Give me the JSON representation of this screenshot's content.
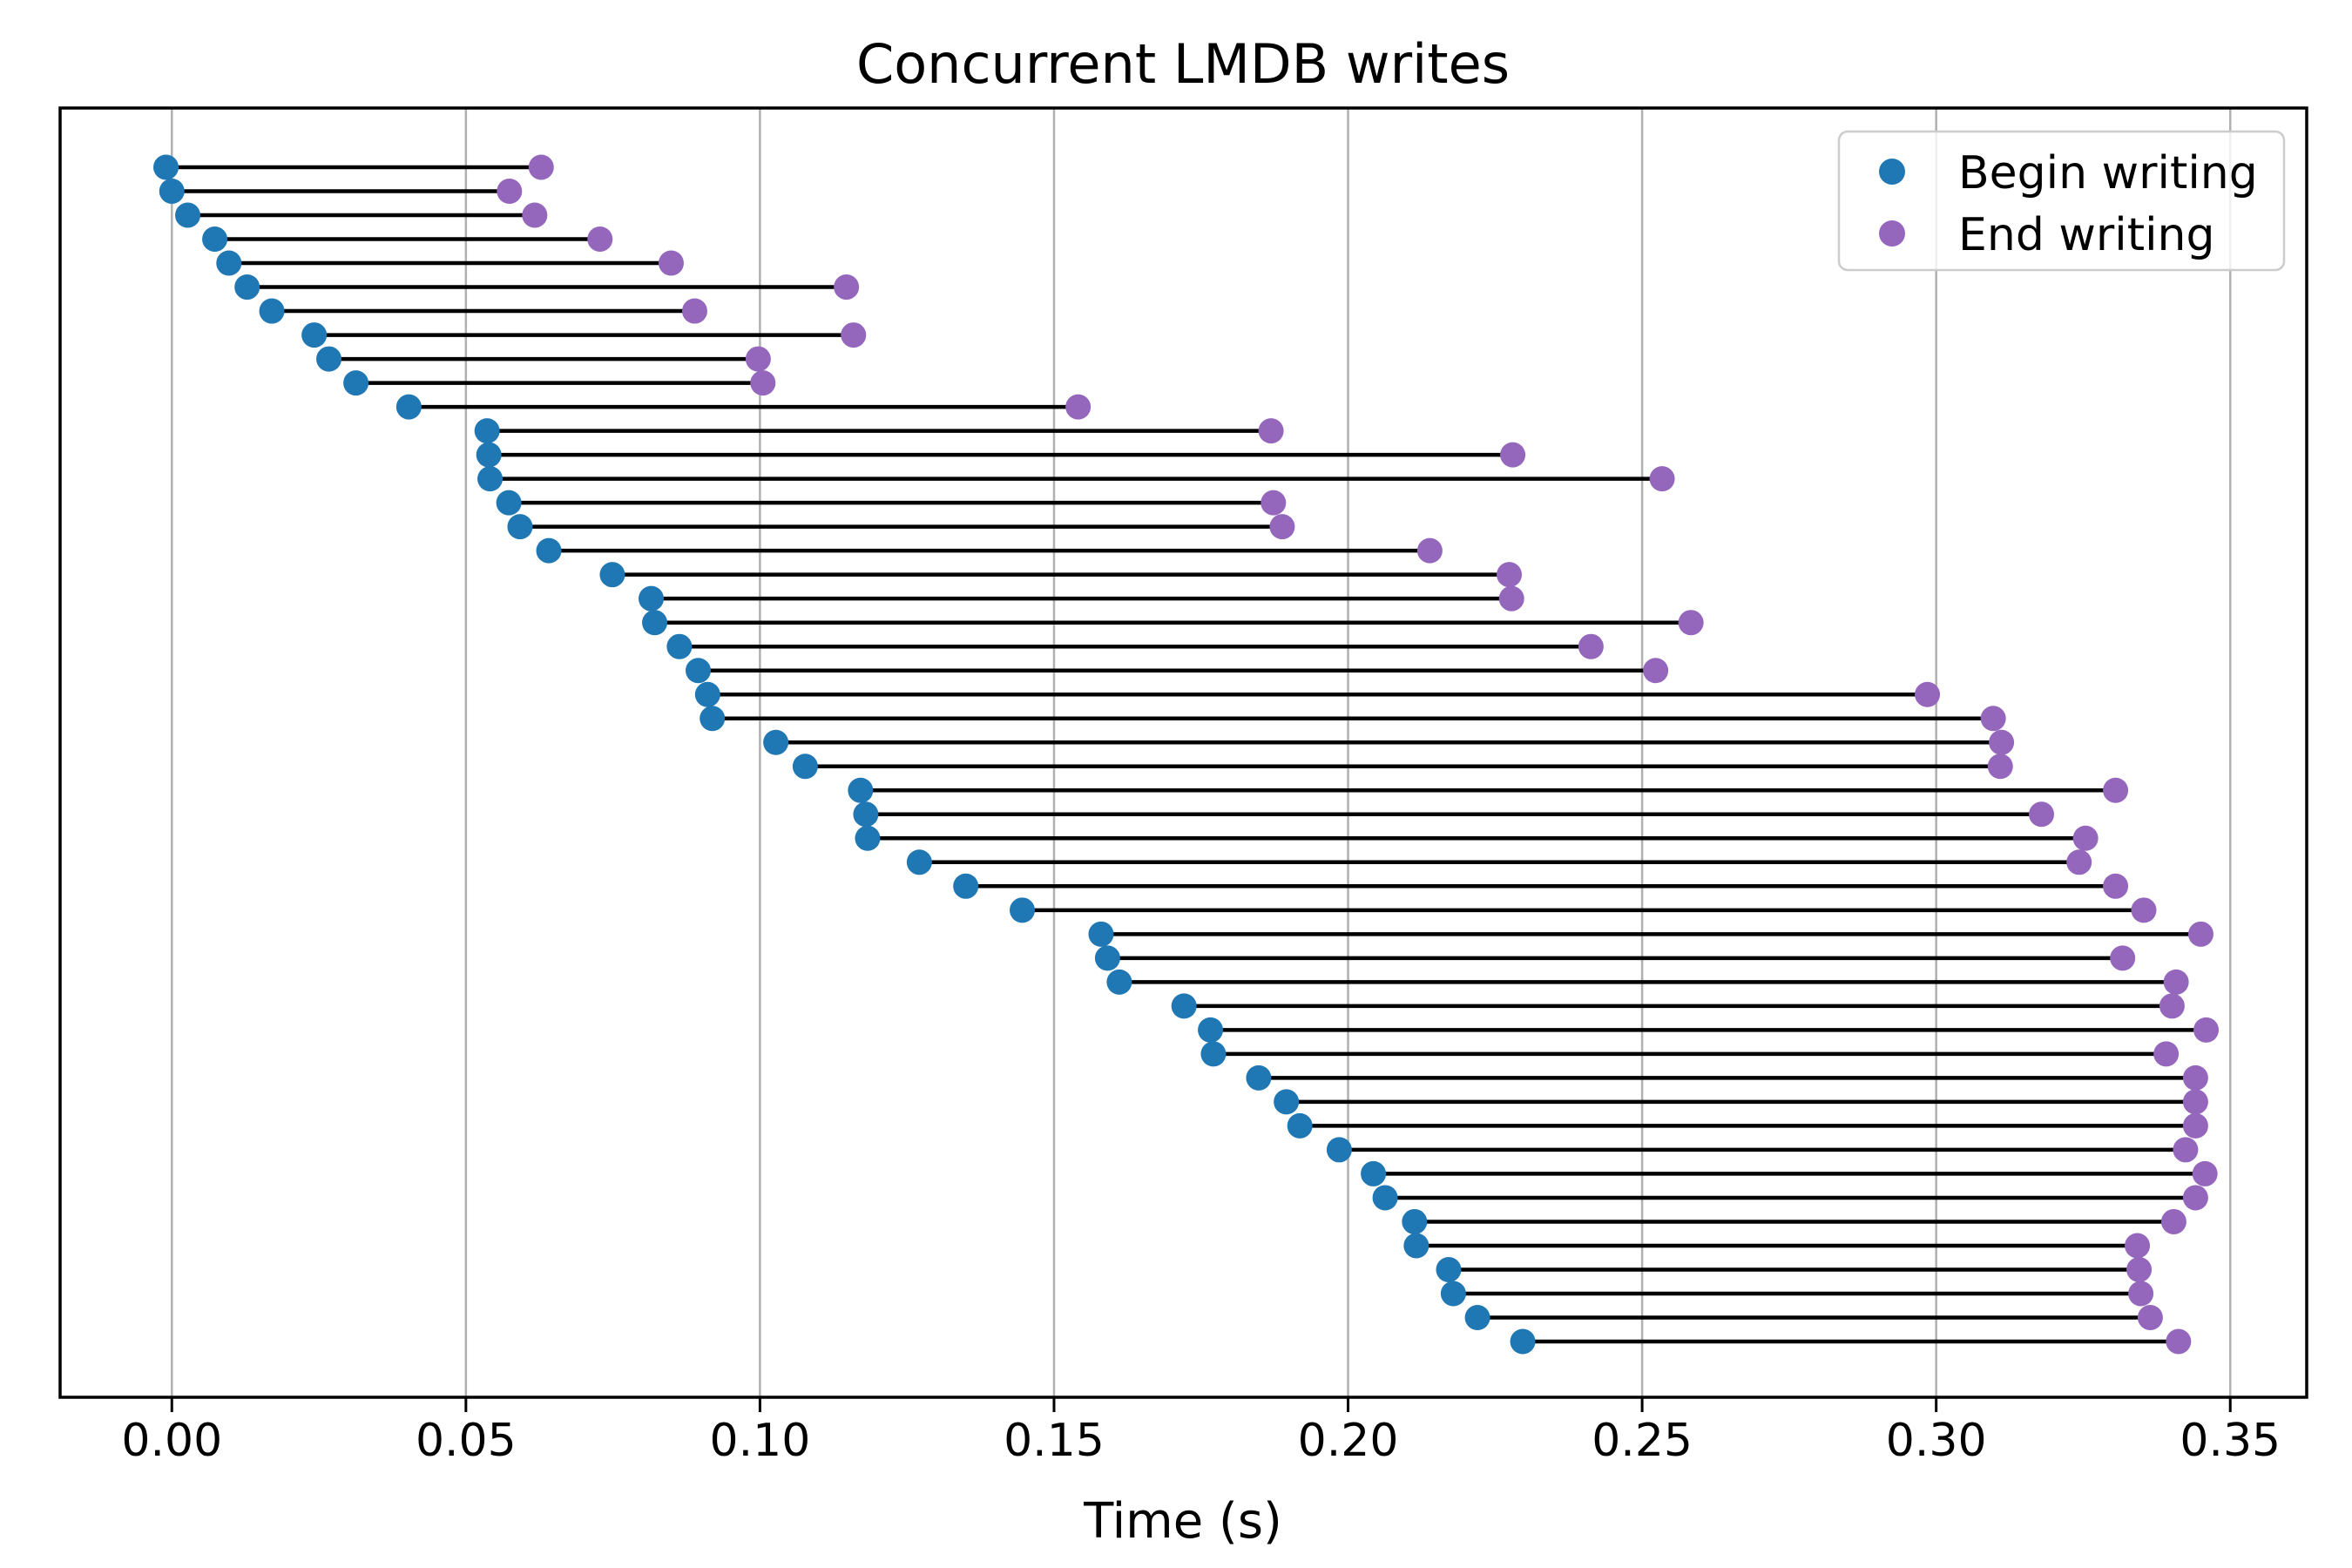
{
  "chart_data": {
    "type": "scatter",
    "subtitle": "",
    "title": "Concurrent LMDB writes",
    "xlabel": "Time (s)",
    "ylabel": "",
    "xlim": [
      -0.019,
      0.363
    ],
    "x_ticks": [
      0.0,
      0.05,
      0.1,
      0.15,
      0.2,
      0.25,
      0.3,
      0.35
    ],
    "x_tick_labels": [
      "0.00",
      "0.05",
      "0.10",
      "0.15",
      "0.20",
      "0.25",
      "0.30",
      "0.35"
    ],
    "grid": {
      "axis": "x",
      "on": true
    },
    "legend": {
      "position": "upper right",
      "entries": [
        {
          "label": "Begin writing",
          "marker": "circle",
          "color": "#1f77b4"
        },
        {
          "label": "End writing",
          "marker": "circle",
          "color": "#9467bd"
        }
      ]
    },
    "series": [
      {
        "name": "Begin writing",
        "role": "segment-start-markers",
        "color": "#1f77b4"
      },
      {
        "name": "End writing",
        "role": "segment-end-markers",
        "color": "#9467bd"
      }
    ],
    "rows": [
      {
        "begin": -0.001,
        "end": 0.0628
      },
      {
        "begin": 0.0,
        "end": 0.0574
      },
      {
        "begin": 0.0027,
        "end": 0.0617
      },
      {
        "begin": 0.0073,
        "end": 0.0728
      },
      {
        "begin": 0.0097,
        "end": 0.0849
      },
      {
        "begin": 0.0128,
        "end": 0.1147
      },
      {
        "begin": 0.017,
        "end": 0.0889
      },
      {
        "begin": 0.0242,
        "end": 0.1159
      },
      {
        "begin": 0.0267,
        "end": 0.0997
      },
      {
        "begin": 0.0313,
        "end": 0.1005
      },
      {
        "begin": 0.0403,
        "end": 0.1541
      },
      {
        "begin": 0.0536,
        "end": 0.1869
      },
      {
        "begin": 0.0539,
        "end": 0.228
      },
      {
        "begin": 0.0541,
        "end": 0.2534
      },
      {
        "begin": 0.0573,
        "end": 0.1873
      },
      {
        "begin": 0.0592,
        "end": 0.1888
      },
      {
        "begin": 0.0641,
        "end": 0.2139
      },
      {
        "begin": 0.0749,
        "end": 0.2274
      },
      {
        "begin": 0.0815,
        "end": 0.2278
      },
      {
        "begin": 0.0821,
        "end": 0.2583
      },
      {
        "begin": 0.0863,
        "end": 0.2413
      },
      {
        "begin": 0.0895,
        "end": 0.2523
      },
      {
        "begin": 0.0911,
        "end": 0.2985
      },
      {
        "begin": 0.0919,
        "end": 0.3097
      },
      {
        "begin": 0.1027,
        "end": 0.3111
      },
      {
        "begin": 0.1077,
        "end": 0.3109
      },
      {
        "begin": 0.1171,
        "end": 0.3305
      },
      {
        "begin": 0.118,
        "end": 0.3179
      },
      {
        "begin": 0.1183,
        "end": 0.3254
      },
      {
        "begin": 0.1271,
        "end": 0.3243
      },
      {
        "begin": 0.135,
        "end": 0.3305
      },
      {
        "begin": 0.1446,
        "end": 0.3353
      },
      {
        "begin": 0.158,
        "end": 0.345
      },
      {
        "begin": 0.1591,
        "end": 0.3317
      },
      {
        "begin": 0.1611,
        "end": 0.3408
      },
      {
        "begin": 0.1721,
        "end": 0.3401
      },
      {
        "begin": 0.1766,
        "end": 0.3459
      },
      {
        "begin": 0.1771,
        "end": 0.3391
      },
      {
        "begin": 0.1848,
        "end": 0.3441
      },
      {
        "begin": 0.1895,
        "end": 0.3441
      },
      {
        "begin": 0.1918,
        "end": 0.3441
      },
      {
        "begin": 0.1985,
        "end": 0.3424
      },
      {
        "begin": 0.2043,
        "end": 0.3457
      },
      {
        "begin": 0.2063,
        "end": 0.3441
      },
      {
        "begin": 0.2113,
        "end": 0.3404
      },
      {
        "begin": 0.2116,
        "end": 0.3342
      },
      {
        "begin": 0.2171,
        "end": 0.3345
      },
      {
        "begin": 0.2179,
        "end": 0.3348
      },
      {
        "begin": 0.222,
        "end": 0.3364
      },
      {
        "begin": 0.2297,
        "end": 0.3412
      }
    ]
  },
  "colors": {
    "background": "#ffffff",
    "begin_marker": "#1f77b4",
    "end_marker": "#9467bd",
    "connector_line": "#000000",
    "gridline": "#b0b0b0",
    "spine": "#000000",
    "legend_border": "#cccccc",
    "legend_background": "rgba(255,255,255,0.8)"
  }
}
